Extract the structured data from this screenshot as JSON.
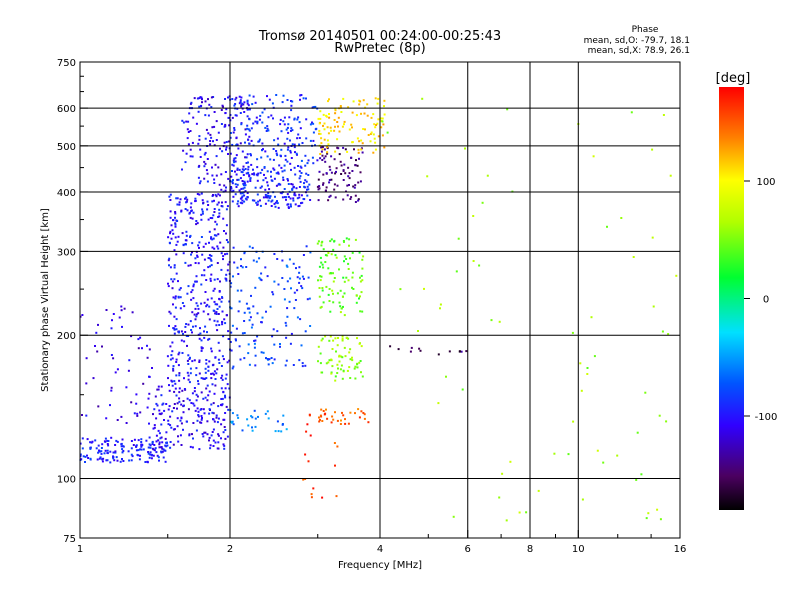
{
  "chart_data": {
    "type": "scatter",
    "title": "Tromsø 20140501 00:24:00-00:25:43",
    "subtitle": "RwPretec (8p)",
    "xlabel": "Frequency [MHz]",
    "ylabel": "Stationary phase Virtual Height [km]",
    "x_scale": "log",
    "y_scale": "log",
    "xlim": [
      1,
      16
    ],
    "ylim": [
      75,
      750
    ],
    "x_ticks": [
      1,
      2,
      4,
      6,
      8,
      10,
      16
    ],
    "x_ticklabels": [
      "1",
      "2",
      "4",
      "6",
      "8",
      "10",
      "16"
    ],
    "y_ticks": [
      75,
      100,
      200,
      300,
      400,
      500,
      600,
      750
    ],
    "y_ticklabels": [
      "75",
      "100",
      "200",
      "300",
      "400",
      "500",
      "600",
      "750"
    ],
    "grid": true,
    "phase_stats": {
      "header": "Phase",
      "line_o": "mean, sd,O: -79.7, 18.1",
      "line_x": "mean, sd,X:  78.9, 26.1"
    },
    "colorbar": {
      "label": "[deg]",
      "range": [
        -180,
        180
      ],
      "ticks": [
        -100,
        0,
        100
      ],
      "ticklabels": [
        "-100",
        "0",
        "100"
      ],
      "colormap": "rainbow"
    },
    "clusters": [
      {
        "xr": [
          1.0,
          1.5
        ],
        "yr": [
          108,
          122
        ],
        "phase": -95,
        "n": 160
      },
      {
        "xr": [
          1.4,
          2.0
        ],
        "yr": [
          115,
          160
        ],
        "phase": -105,
        "n": 200
      },
      {
        "xr": [
          1.5,
          2.0
        ],
        "yr": [
          160,
          400
        ],
        "phase": -100,
        "n": 420
      },
      {
        "xr": [
          1.6,
          2.2
        ],
        "yr": [
          400,
          640
        ],
        "phase": -105,
        "n": 180
      },
      {
        "xr": [
          2.0,
          2.9
        ],
        "yr": [
          370,
          450
        ],
        "phase": -95,
        "n": 200
      },
      {
        "xr": [
          2.0,
          3.0
        ],
        "yr": [
          450,
          640
        ],
        "phase": -90,
        "n": 180
      },
      {
        "xr": [
          2.0,
          2.9
        ],
        "yr": [
          170,
          310
        ],
        "phase": -80,
        "n": 150
      },
      {
        "xr": [
          1.0,
          1.4
        ],
        "yr": [
          130,
          240
        ],
        "phase": -115,
        "n": 60
      },
      {
        "xr": [
          2.0,
          2.6
        ],
        "yr": [
          125,
          140
        ],
        "phase": -60,
        "n": 30
      },
      {
        "xr": [
          3.0,
          3.7
        ],
        "yr": [
          380,
          500
        ],
        "phase": -145,
        "n": 90
      },
      {
        "xr": [
          3.0,
          4.1
        ],
        "yr": [
          480,
          640
        ],
        "phase": 110,
        "n": 110
      },
      {
        "xr": [
          3.0,
          3.7
        ],
        "yr": [
          220,
          320
        ],
        "phase": 45,
        "n": 100
      },
      {
        "xr": [
          3.0,
          3.7
        ],
        "yr": [
          160,
          200
        ],
        "phase": 55,
        "n": 70
      },
      {
        "xr": [
          3.0,
          3.8
        ],
        "yr": [
          130,
          140
        ],
        "phase": 150,
        "n": 30
      },
      {
        "xr": [
          2.8,
          3.3
        ],
        "yr": [
          90,
          140
        ],
        "phase": 160,
        "n": 20
      },
      {
        "xr": [
          4.0,
          16.0
        ],
        "yr": [
          80,
          640
        ],
        "phase": 60,
        "n": 70
      },
      {
        "xr": [
          4.0,
          6.0
        ],
        "yr": [
          180,
          190
        ],
        "phase": -150,
        "n": 12
      }
    ]
  }
}
